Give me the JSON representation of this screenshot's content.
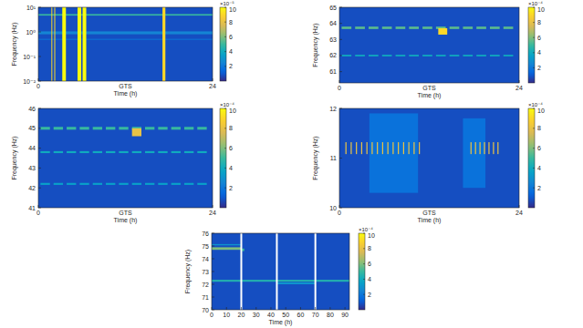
{
  "chart_data": [
    {
      "type": "heatmap",
      "x_label": "Time (h)",
      "y_label": "Frequency (Hz)",
      "annotations": [
        "GTS"
      ],
      "log": "y",
      "xlim": [
        0,
        24
      ],
      "xticks": [
        0,
        24
      ],
      "ylim": [
        0.01,
        10
      ],
      "yticks": [
        {
          "value": 0.01,
          "label": "10⁻²"
        },
        {
          "value": 0.1,
          "label": "10⁻¹"
        },
        {
          "value": 1,
          "label": "10⁰"
        },
        {
          "value": 10,
          "label": "10¹"
        }
      ],
      "colorbar": {
        "range": [
          0,
          10
        ],
        "ticks": [
          2,
          4,
          6,
          8,
          10
        ],
        "label": "×10⁻⁵"
      },
      "cells": [
        [
          0,
          24,
          0.01,
          10,
          0.8
        ],
        [
          0,
          24,
          0.8,
          1.05,
          2.5
        ],
        [
          0,
          24,
          0.48,
          0.52,
          2
        ],
        [
          0,
          24,
          4.6,
          5.3,
          5
        ],
        [
          1.8,
          1.9,
          0.01,
          10,
          9
        ],
        [
          2.2,
          2.3,
          0.01,
          10,
          9
        ],
        [
          3.3,
          3.8,
          0.01,
          10,
          10
        ],
        [
          5.4,
          5.9,
          0.01,
          10,
          10
        ],
        [
          6.1,
          6.6,
          0.01,
          10,
          10
        ],
        [
          17.1,
          17.5,
          0.01,
          10,
          9
        ]
      ]
    },
    {
      "type": "heatmap",
      "x_label": "Time (h)",
      "y_label": "Frequency (Hz)",
      "annotations": [
        "GTS"
      ],
      "xlim": [
        0,
        24
      ],
      "xticks": [
        0,
        24
      ],
      "ylim": [
        60.3,
        65
      ],
      "yticks": [
        61,
        62,
        63,
        64,
        65
      ],
      "colorbar": {
        "range": [
          0,
          10
        ],
        "ticks": [
          2,
          4,
          6,
          8,
          10
        ],
        "label": "×10⁻⁴"
      },
      "cells": [
        [
          0,
          24,
          60.3,
          65,
          0.8
        ],
        [
          0.3,
          1.6,
          63.65,
          63.8,
          5.5
        ],
        [
          2.1,
          3.4,
          63.65,
          63.8,
          5.5
        ],
        [
          3.9,
          5.2,
          63.65,
          63.8,
          5.5
        ],
        [
          5.7,
          7.0,
          63.65,
          63.8,
          5.5
        ],
        [
          7.5,
          8.8,
          63.65,
          63.8,
          5.5
        ],
        [
          9.3,
          10.6,
          63.65,
          63.8,
          5.5
        ],
        [
          11.1,
          12.4,
          63.65,
          63.8,
          5.5
        ],
        [
          12.9,
          14.2,
          63.65,
          63.8,
          5.5
        ],
        [
          14.7,
          16.0,
          63.65,
          63.8,
          5.5
        ],
        [
          16.5,
          17.8,
          63.65,
          63.8,
          5.5
        ],
        [
          18.3,
          19.6,
          63.65,
          63.8,
          5.5
        ],
        [
          20.1,
          21.4,
          63.65,
          63.8,
          5.5
        ],
        [
          21.9,
          23.2,
          63.65,
          63.8,
          5.5
        ],
        [
          0.3,
          1.6,
          61.95,
          62.05,
          4
        ],
        [
          2.1,
          3.4,
          61.95,
          62.05,
          4
        ],
        [
          3.9,
          5.2,
          61.95,
          62.05,
          4
        ],
        [
          5.7,
          7.0,
          61.95,
          62.05,
          4
        ],
        [
          7.5,
          8.8,
          61.95,
          62.05,
          4
        ],
        [
          9.3,
          10.6,
          61.95,
          62.05,
          4
        ],
        [
          11.1,
          12.4,
          61.95,
          62.05,
          4
        ],
        [
          12.9,
          14.2,
          61.95,
          62.05,
          4
        ],
        [
          14.7,
          16.0,
          61.95,
          62.05,
          4
        ],
        [
          16.5,
          17.8,
          61.95,
          62.05,
          4
        ],
        [
          18.3,
          19.6,
          61.95,
          62.05,
          4
        ],
        [
          20.1,
          21.4,
          61.95,
          62.05,
          4
        ],
        [
          21.9,
          23.2,
          61.95,
          62.05,
          4
        ],
        [
          13.2,
          14.4,
          63.3,
          63.7,
          9
        ]
      ]
    },
    {
      "type": "heatmap",
      "x_label": "Time (h)",
      "y_label": "Frequency (Hz)",
      "annotations": [
        "GTS"
      ],
      "xlim": [
        0,
        24
      ],
      "xticks": [
        0,
        24
      ],
      "ylim": [
        41,
        46
      ],
      "yticks": [
        41,
        42,
        43,
        44,
        45,
        46
      ],
      "colorbar": {
        "range": [
          0,
          10
        ],
        "ticks": [
          2,
          4,
          6,
          8,
          10
        ],
        "label": "×10⁻⁴"
      },
      "cells": [
        [
          0,
          24,
          41,
          46,
          0.8
        ],
        [
          0.3,
          1.6,
          44.93,
          45.07,
          5
        ],
        [
          2.1,
          3.4,
          44.93,
          45.07,
          5
        ],
        [
          3.9,
          5.2,
          44.93,
          45.07,
          5
        ],
        [
          5.7,
          7.0,
          44.93,
          45.07,
          5
        ],
        [
          7.5,
          8.8,
          44.93,
          45.07,
          5
        ],
        [
          9.3,
          10.6,
          44.93,
          45.07,
          5
        ],
        [
          11.1,
          12.4,
          44.93,
          45.07,
          5
        ],
        [
          12.9,
          14.2,
          44.93,
          45.07,
          5
        ],
        [
          14.7,
          16.0,
          44.93,
          45.07,
          5
        ],
        [
          16.5,
          17.8,
          44.93,
          45.07,
          5
        ],
        [
          18.3,
          19.6,
          44.93,
          45.07,
          5
        ],
        [
          20.1,
          21.4,
          44.93,
          45.07,
          5
        ],
        [
          21.9,
          23.2,
          44.93,
          45.07,
          5
        ],
        [
          0.3,
          1.6,
          43.75,
          43.85,
          4
        ],
        [
          2.1,
          3.4,
          43.75,
          43.85,
          4
        ],
        [
          3.9,
          5.2,
          43.75,
          43.85,
          4
        ],
        [
          5.7,
          7.0,
          43.75,
          43.85,
          4
        ],
        [
          7.5,
          8.8,
          43.75,
          43.85,
          4
        ],
        [
          9.3,
          10.6,
          43.75,
          43.85,
          4
        ],
        [
          11.1,
          12.4,
          43.75,
          43.85,
          4
        ],
        [
          12.9,
          14.2,
          43.75,
          43.85,
          4
        ],
        [
          14.7,
          16.0,
          43.75,
          43.85,
          4
        ],
        [
          16.5,
          17.8,
          43.75,
          43.85,
          4
        ],
        [
          18.3,
          19.6,
          43.75,
          43.85,
          4
        ],
        [
          20.1,
          21.4,
          43.75,
          43.85,
          4
        ],
        [
          21.9,
          23.2,
          43.75,
          43.85,
          4
        ],
        [
          0.3,
          1.6,
          42.15,
          42.25,
          3.5
        ],
        [
          2.1,
          3.4,
          42.15,
          42.25,
          3.5
        ],
        [
          3.9,
          5.2,
          42.15,
          42.25,
          3.5
        ],
        [
          5.7,
          7.0,
          42.15,
          42.25,
          3.5
        ],
        [
          7.5,
          8.8,
          42.15,
          42.25,
          3.5
        ],
        [
          9.3,
          10.6,
          42.15,
          42.25,
          3.5
        ],
        [
          11.1,
          12.4,
          42.15,
          42.25,
          3.5
        ],
        [
          12.9,
          14.2,
          42.15,
          42.25,
          3.5
        ],
        [
          14.7,
          16.0,
          42.15,
          42.25,
          3.5
        ],
        [
          16.5,
          17.8,
          42.15,
          42.25,
          3.5
        ],
        [
          18.3,
          19.6,
          42.15,
          42.25,
          3.5
        ],
        [
          20.1,
          21.4,
          42.15,
          42.25,
          3.5
        ],
        [
          21.9,
          23.2,
          42.15,
          42.25,
          3.5
        ],
        [
          12.9,
          14.2,
          44.6,
          45,
          8
        ]
      ]
    },
    {
      "type": "heatmap",
      "x_label": "Time (h)",
      "y_label": "Frequency (Hz)",
      "annotations": [
        "GTS"
      ],
      "xlim": [
        0,
        24
      ],
      "xticks": [
        0,
        24
      ],
      "ylim": [
        10,
        12
      ],
      "yticks": [
        10,
        11,
        12
      ],
      "colorbar": {
        "range": [
          0,
          10
        ],
        "ticks": [
          2,
          4,
          6,
          8,
          10
        ],
        "label": "×10⁻⁴"
      },
      "cells": [
        [
          0,
          24,
          10,
          12,
          0.8
        ],
        [
          4,
          10.5,
          10.3,
          11.9,
          1.8
        ],
        [
          16.5,
          19.5,
          10.4,
          11.8,
          1.8
        ],
        [
          0.8,
          0.95,
          11.08,
          11.32,
          8
        ],
        [
          1.5,
          1.65,
          11.08,
          11.32,
          8
        ],
        [
          2.2,
          2.35,
          11.08,
          11.32,
          8
        ],
        [
          2.9,
          3.05,
          11.08,
          11.32,
          8
        ],
        [
          3.6,
          3.75,
          11.08,
          11.32,
          8
        ],
        [
          4.3,
          4.45,
          11.08,
          11.32,
          8
        ],
        [
          5.0,
          5.15,
          11.08,
          11.32,
          8
        ],
        [
          5.7,
          5.85,
          11.08,
          11.32,
          8
        ],
        [
          6.4,
          6.55,
          11.08,
          11.32,
          8
        ],
        [
          7.1,
          7.25,
          11.08,
          11.32,
          8
        ],
        [
          7.8,
          7.95,
          11.08,
          11.32,
          8
        ],
        [
          8.5,
          8.65,
          11.08,
          11.32,
          8
        ],
        [
          9.2,
          9.35,
          11.08,
          11.32,
          8
        ],
        [
          9.9,
          10.05,
          11.08,
          11.32,
          8
        ],
        [
          10.6,
          10.75,
          11.08,
          11.32,
          8
        ],
        [
          17.5,
          17.65,
          11.08,
          11.32,
          8
        ],
        [
          18.1,
          18.25,
          11.08,
          11.32,
          8
        ],
        [
          18.7,
          18.85,
          11.08,
          11.32,
          8
        ],
        [
          19.3,
          19.45,
          11.08,
          11.32,
          8
        ],
        [
          19.9,
          20.05,
          11.08,
          11.32,
          8
        ],
        [
          20.5,
          20.65,
          11.08,
          11.32,
          8
        ],
        [
          21.1,
          21.25,
          11.08,
          11.32,
          8
        ]
      ]
    },
    {
      "type": "heatmap",
      "x_label": "Time (h)",
      "y_label": "Frequency (Hz)",
      "xlim": [
        0,
        93
      ],
      "xticks": [
        0,
        10,
        20,
        30,
        40,
        50,
        60,
        70,
        80,
        90
      ],
      "ylim": [
        70,
        76
      ],
      "yticks": [
        70,
        71,
        72,
        73,
        74,
        75,
        76
      ],
      "colorbar": {
        "range": [
          0,
          10
        ],
        "ticks": [
          2,
          4,
          6,
          8,
          10
        ],
        "label": "×10⁻⁴"
      },
      "panel_breaks": [
        20,
        44,
        70
      ],
      "cells": [
        [
          0,
          93,
          70,
          76,
          0.8
        ],
        [
          0,
          20,
          74.7,
          74.9,
          6
        ],
        [
          20,
          22,
          74.6,
          74.8,
          5
        ],
        [
          0,
          93,
          72.2,
          72.35,
          4.5
        ],
        [
          0,
          20,
          75.05,
          75.15,
          3
        ],
        [
          44,
          70,
          72.0,
          72.15,
          3
        ]
      ]
    }
  ]
}
